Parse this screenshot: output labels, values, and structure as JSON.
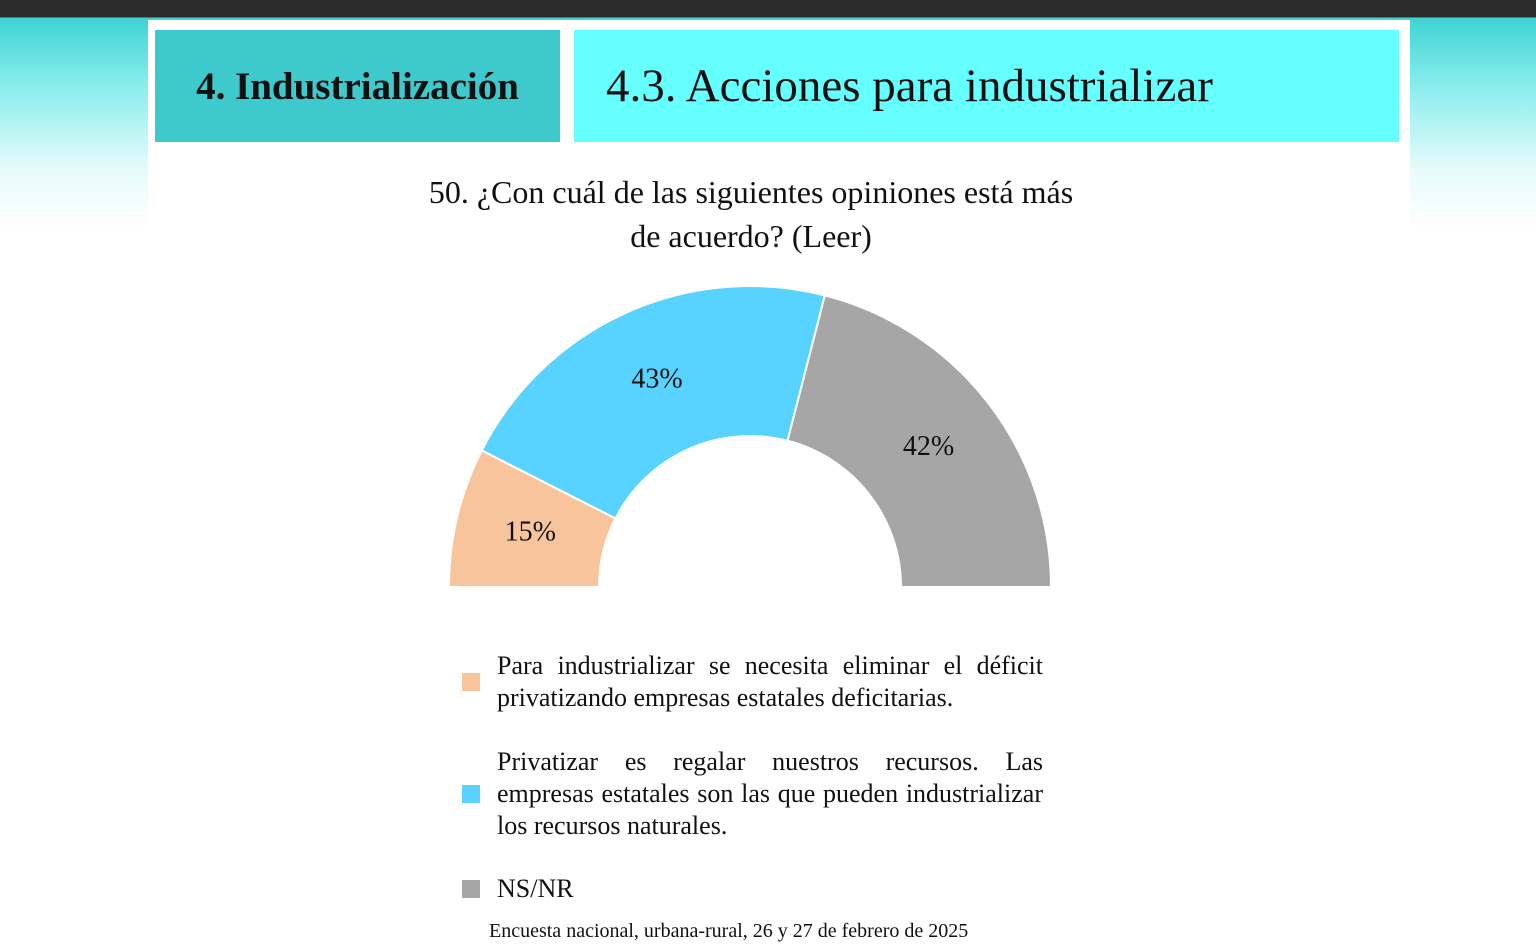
{
  "header": {
    "section": "4. Industrialización",
    "subsection": "4.3. Acciones para industrializar"
  },
  "chart_data": {
    "type": "pie",
    "shape": "semi-donut",
    "title": "50. ¿Con cuál de las siguientes opiniones está más de acuerdo? (Leer)",
    "categories": [
      "Para industrializar se necesita eliminar el déficit privatizando empresas estatales deficitarias.",
      "Privatizar es regalar nuestros recursos. Las empresas estatales son las que pueden industrializar los recursos naturales.",
      "NS/NR"
    ],
    "values": [
      15,
      43,
      42
    ],
    "value_labels": [
      "15%",
      "43%",
      "42%"
    ],
    "colors": [
      "#f8c49c",
      "#58d2ff",
      "#a6a6a6"
    ],
    "source": "Encuesta nacional, urbana-rural, 26 y 27 de febrero de 2025"
  }
}
